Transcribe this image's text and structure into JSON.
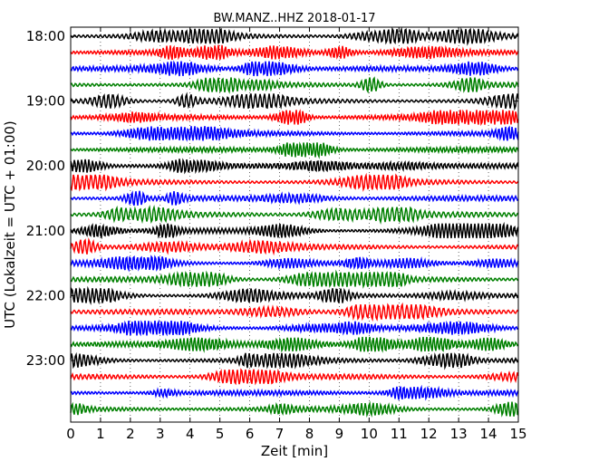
{
  "chart_data": {
    "type": "line",
    "title": "BW.MANZ..HHZ 2018-01-17",
    "xlabel": "Zeit  [min]",
    "ylabel": "UTC (Lokalzeit = UTC + 01:00)",
    "xlim": [
      0,
      15
    ],
    "x_ticks": [
      "0",
      "1",
      "2",
      "3",
      "4",
      "5",
      "6",
      "7",
      "8",
      "9",
      "10",
      "11",
      "12",
      "13",
      "14",
      "15"
    ],
    "y_ticks": [
      "18:00",
      "19:00",
      "20:00",
      "21:00",
      "22:00",
      "23:00"
    ],
    "trace_start_time": "18:00",
    "trace_count": 24,
    "trace_minutes": 15,
    "grid": "vertical-dotted",
    "colors": [
      "#000000",
      "#ff0000",
      "#0000ff",
      "#008000"
    ]
  }
}
